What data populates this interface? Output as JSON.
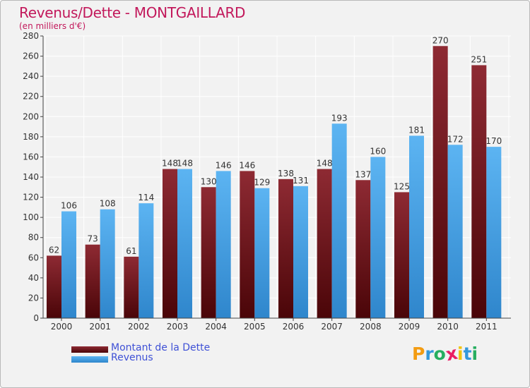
{
  "title": "Revenus/Dette - MONTGAILLARD",
  "subtitle": "(en milliers d'€)",
  "logo": {
    "text": "Proxiti",
    "letters": [
      {
        "ch": "P",
        "color": "#f39c12"
      },
      {
        "ch": "r",
        "color": "#3498db"
      },
      {
        "ch": "o",
        "color": "#27ae60"
      },
      {
        "ch": "x",
        "color": "#e91e63"
      },
      {
        "ch": "i",
        "color": "#f1c40f"
      },
      {
        "ch": "t",
        "color": "#3498db"
      },
      {
        "ch": "i",
        "color": "#27ae60"
      }
    ]
  },
  "chart_data": {
    "type": "bar",
    "title": "Revenus/Dette - MONTGAILLARD",
    "subtitle": "(en milliers d'€)",
    "categories": [
      "2000",
      "2001",
      "2002",
      "2003",
      "2004",
      "2005",
      "2006",
      "2007",
      "2008",
      "2009",
      "2010",
      "2011"
    ],
    "series": [
      {
        "name": "Montant de la Dette",
        "color": "#7a1a22",
        "values": [
          62,
          73,
          61,
          148,
          130,
          146,
          138,
          148,
          137,
          125,
          270,
          251
        ]
      },
      {
        "name": "Revenus",
        "color": "#4aa3e6",
        "values": [
          106,
          108,
          114,
          148,
          146,
          129,
          131,
          193,
          160,
          181,
          172,
          170
        ]
      }
    ],
    "ylim": [
      0,
      280
    ],
    "yticks": [
      0,
      20,
      40,
      60,
      80,
      100,
      120,
      140,
      160,
      180,
      200,
      220,
      240,
      260,
      280
    ],
    "grid": true,
    "legend": "bottom-left"
  }
}
